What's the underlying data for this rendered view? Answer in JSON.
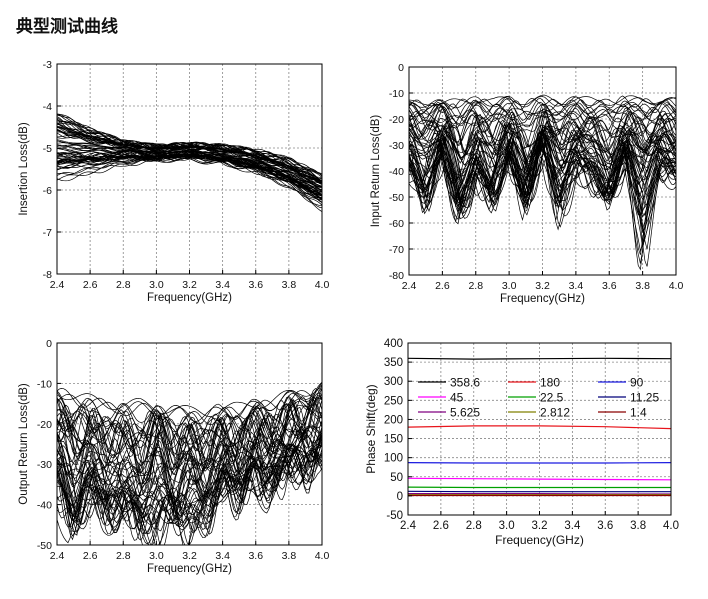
{
  "page": {
    "title": "典型测试曲线"
  },
  "chart_data": [
    {
      "id": "insertion-loss",
      "type": "line",
      "xlabel": "Frequency(GHz)",
      "ylabel": "Insertion Loss(dB)",
      "xlim": [
        2.4,
        4.0
      ],
      "ylim": [
        -8,
        -3
      ],
      "xticks": [
        "2.4",
        "2.6",
        "2.8",
        "3.0",
        "3.2",
        "3.4",
        "3.6",
        "3.8",
        "4.0"
      ],
      "yticks": [
        "-3",
        "-4",
        "-5",
        "-6",
        "-7",
        "-8"
      ],
      "grid": true,
      "series": [
        {
          "x": [
            2.4,
            2.6,
            2.8,
            3.0,
            3.2,
            3.4,
            3.6,
            3.8,
            4.0
          ],
          "values": [
            -4.1,
            -4.5,
            -4.8,
            -4.9,
            -4.85,
            -4.9,
            -5.0,
            -5.2,
            -5.6
          ]
        },
        {
          "x": [
            2.4,
            2.6,
            2.8,
            3.0,
            3.2,
            3.4,
            3.6,
            3.8,
            4.0
          ],
          "values": [
            -4.4,
            -4.7,
            -4.9,
            -5.0,
            -4.95,
            -5.0,
            -5.15,
            -5.4,
            -5.8
          ]
        },
        {
          "x": [
            2.4,
            2.6,
            2.8,
            3.0,
            3.2,
            3.4,
            3.6,
            3.8,
            4.0
          ],
          "values": [
            -4.8,
            -4.9,
            -5.0,
            -5.1,
            -5.05,
            -5.15,
            -5.3,
            -5.55,
            -5.9
          ]
        },
        {
          "x": [
            2.4,
            2.6,
            2.8,
            3.0,
            3.2,
            3.4,
            3.6,
            3.8,
            4.0
          ],
          "values": [
            -5.2,
            -5.2,
            -5.15,
            -5.2,
            -5.15,
            -5.25,
            -5.4,
            -5.7,
            -6.1
          ]
        },
        {
          "x": [
            2.4,
            2.6,
            2.8,
            3.0,
            3.2,
            3.4,
            3.6,
            3.8,
            4.0
          ],
          "values": [
            -5.5,
            -5.4,
            -5.3,
            -5.25,
            -5.2,
            -5.3,
            -5.5,
            -5.8,
            -6.3
          ]
        },
        {
          "x": [
            2.4,
            2.6,
            2.8,
            3.0,
            3.2,
            3.4,
            3.6,
            3.8,
            4.0
          ],
          "values": [
            -5.8,
            -5.6,
            -5.4,
            -5.3,
            -5.3,
            -5.4,
            -5.6,
            -5.95,
            -6.5
          ]
        }
      ]
    },
    {
      "id": "input-return-loss",
      "type": "line",
      "xlabel": "Frequency(GHz)",
      "ylabel": "Input Return Loss(dB)",
      "xlim": [
        2.4,
        4.0
      ],
      "ylim": [
        -80,
        0
      ],
      "xticks": [
        "2.4",
        "2.6",
        "2.8",
        "3.0",
        "3.2",
        "3.4",
        "3.6",
        "3.8",
        "4.0"
      ],
      "yticks": [
        "0",
        "-10",
        "-20",
        "-30",
        "-40",
        "-50",
        "-60",
        "-70",
        "-80"
      ],
      "grid": true,
      "series": [
        {
          "x": [
            2.4,
            2.5,
            2.6,
            2.7,
            2.8,
            2.9,
            3.0,
            3.1,
            3.2,
            3.3,
            3.4,
            3.5,
            3.6,
            3.7,
            3.8,
            3.9,
            4.0
          ],
          "values": [
            -14,
            -13,
            -14,
            -13,
            -12,
            -13,
            -12,
            -13,
            -12,
            -13,
            -12,
            -13,
            -13,
            -12,
            -13,
            -12,
            -13
          ]
        },
        {
          "x": [
            2.4,
            2.5,
            2.6,
            2.7,
            2.8,
            2.9,
            3.0,
            3.1,
            3.2,
            3.3,
            3.4,
            3.5,
            3.6,
            3.7,
            3.8,
            3.9,
            4.0
          ],
          "values": [
            -22,
            -28,
            -20,
            -35,
            -24,
            -30,
            -22,
            -38,
            -21,
            -30,
            -24,
            -26,
            -34,
            -22,
            -30,
            -24,
            -28
          ]
        },
        {
          "x": [
            2.4,
            2.5,
            2.6,
            2.7,
            2.8,
            2.9,
            3.0,
            3.1,
            3.2,
            3.3,
            3.4,
            3.5,
            3.6,
            3.7,
            3.8,
            3.9,
            4.0
          ],
          "values": [
            -30,
            -45,
            -26,
            -52,
            -32,
            -48,
            -26,
            -50,
            -24,
            -44,
            -30,
            -35,
            -48,
            -28,
            -42,
            -30,
            -36
          ]
        },
        {
          "x": [
            2.4,
            2.5,
            2.6,
            2.7,
            2.8,
            2.9,
            3.0,
            3.1,
            3.2,
            3.3,
            3.4,
            3.5,
            3.6,
            3.7,
            3.8,
            3.9,
            4.0
          ],
          "values": [
            -40,
            -56,
            -32,
            -58,
            -44,
            -52,
            -36,
            -55,
            -30,
            -60,
            -40,
            -45,
            -52,
            -34,
            -78,
            -38,
            -45
          ]
        }
      ]
    },
    {
      "id": "output-return-loss",
      "type": "line",
      "xlabel": "Frequency(GHz)",
      "ylabel": "Output Return Loss(dB)",
      "xlim": [
        2.4,
        4.0
      ],
      "ylim": [
        -50,
        0
      ],
      "xticks": [
        "2.4",
        "2.6",
        "2.8",
        "3.0",
        "3.2",
        "3.4",
        "3.6",
        "3.8",
        "4.0"
      ],
      "yticks": [
        "0",
        "-10",
        "-20",
        "-30",
        "-40",
        "-50"
      ],
      "grid": true,
      "series": [
        {
          "x": [
            2.4,
            2.5,
            2.6,
            2.7,
            2.8,
            2.9,
            3.0,
            3.1,
            3.2,
            3.3,
            3.4,
            3.5,
            3.6,
            3.7,
            3.8,
            3.9,
            4.0
          ],
          "values": [
            -12,
            -13,
            -14,
            -15,
            -15,
            -15,
            -16,
            -16,
            -17,
            -17,
            -16,
            -16,
            -15,
            -14,
            -13,
            -12,
            -10
          ]
        },
        {
          "x": [
            2.4,
            2.5,
            2.6,
            2.7,
            2.8,
            2.9,
            3.0,
            3.1,
            3.2,
            3.3,
            3.4,
            3.5,
            3.6,
            3.7,
            3.8,
            3.9,
            4.0
          ],
          "values": [
            -20,
            -28,
            -22,
            -30,
            -24,
            -32,
            -22,
            -30,
            -26,
            -30,
            -24,
            -28,
            -22,
            -26,
            -20,
            -22,
            -18
          ]
        },
        {
          "x": [
            2.4,
            2.5,
            2.6,
            2.7,
            2.8,
            2.9,
            3.0,
            3.1,
            3.2,
            3.3,
            3.4,
            3.5,
            3.6,
            3.7,
            3.8,
            3.9,
            4.0
          ],
          "values": [
            -28,
            -40,
            -30,
            -38,
            -34,
            -40,
            -30,
            -42,
            -32,
            -38,
            -30,
            -34,
            -28,
            -32,
            -26,
            -28,
            -24
          ]
        },
        {
          "x": [
            2.4,
            2.5,
            2.6,
            2.7,
            2.8,
            2.9,
            3.0,
            3.1,
            3.2,
            3.3,
            3.4,
            3.5,
            3.6,
            3.7,
            3.8,
            3.9,
            4.0
          ],
          "values": [
            -36,
            -48,
            -38,
            -44,
            -42,
            -46,
            -50,
            -40,
            -50,
            -44,
            -36,
            -40,
            -34,
            -38,
            -30,
            -34,
            -28
          ]
        }
      ]
    },
    {
      "id": "phase-shift",
      "type": "line",
      "xlabel": "Frequency(GHz)",
      "ylabel": "Phase Shift(deg)",
      "xlim": [
        2.4,
        4.0
      ],
      "ylim": [
        -50,
        400
      ],
      "xticks": [
        "2.4",
        "2.6",
        "2.8",
        "3.0",
        "3.2",
        "3.4",
        "3.6",
        "3.8",
        "4.0"
      ],
      "yticks": [
        "400",
        "350",
        "300",
        "250",
        "200",
        "150",
        "100",
        "50",
        "0",
        "-50"
      ],
      "grid": true,
      "legend": "top",
      "series": [
        {
          "name": "358.6",
          "color": "#000000",
          "x": [
            2.4,
            2.8,
            3.2,
            3.6,
            4.0
          ],
          "values": [
            360,
            358,
            359,
            360,
            359
          ]
        },
        {
          "name": "180",
          "color": "#e8141b",
          "x": [
            2.4,
            2.8,
            3.2,
            3.6,
            4.0
          ],
          "values": [
            180,
            183,
            183,
            181,
            176
          ]
        },
        {
          "name": "90",
          "color": "#1b1be0",
          "x": [
            2.4,
            2.8,
            3.2,
            3.6,
            4.0
          ],
          "values": [
            87,
            86,
            86,
            86,
            87
          ]
        },
        {
          "name": "45",
          "color": "#ff00ff",
          "x": [
            2.4,
            2.8,
            3.2,
            3.6,
            4.0
          ],
          "values": [
            46,
            45,
            44,
            43,
            42
          ]
        },
        {
          "name": "22.5",
          "color": "#00a000",
          "x": [
            2.4,
            2.8,
            3.2,
            3.6,
            4.0
          ],
          "values": [
            23,
            22,
            22,
            22,
            22
          ]
        },
        {
          "name": "11.25",
          "color": "#00007a",
          "x": [
            2.4,
            2.8,
            3.2,
            3.6,
            4.0
          ],
          "values": [
            12,
            11,
            11,
            11,
            11
          ]
        },
        {
          "name": "5.625",
          "color": "#800080",
          "x": [
            2.4,
            2.8,
            3.2,
            3.6,
            4.0
          ],
          "values": [
            6,
            6,
            6,
            5,
            5
          ]
        },
        {
          "name": "2.812",
          "color": "#808000",
          "x": [
            2.4,
            2.8,
            3.2,
            3.6,
            4.0
          ],
          "values": [
            3,
            3,
            3,
            3,
            3
          ]
        },
        {
          "name": "1.4",
          "color": "#8b0000",
          "x": [
            2.4,
            2.8,
            3.2,
            3.6,
            4.0
          ],
          "values": [
            1,
            1,
            1,
            1,
            1
          ]
        }
      ]
    }
  ]
}
